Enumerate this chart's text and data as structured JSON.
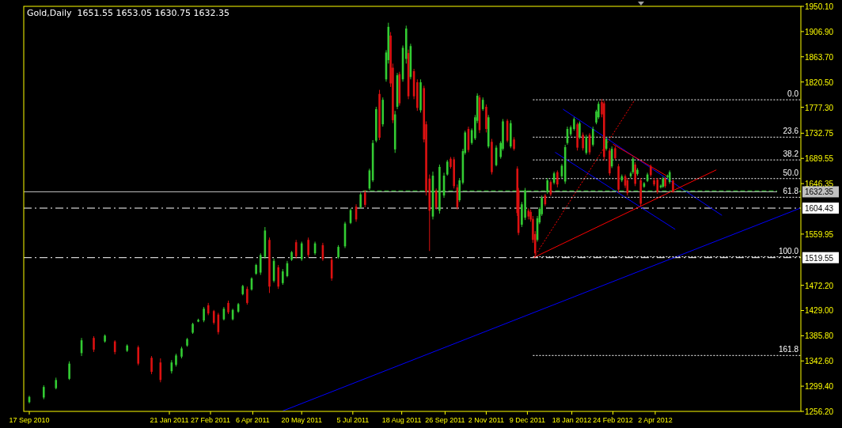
{
  "chart_data": {
    "type": "candlestick",
    "title": "Gold,Daily  1651.55 1653.05 1630.75 1632.35",
    "xlim": [
      "2010-09-12",
      "2012-08-11"
    ],
    "xticks": [
      {
        "value": "2010-09-17",
        "label": "17 Sep 2010"
      },
      {
        "value": "2011-01-21",
        "label": "21 Jan 2011"
      },
      {
        "value": "2011-02-27",
        "label": "27 Feb 2011"
      },
      {
        "value": "2011-04-06",
        "label": "6 Apr 2011"
      },
      {
        "value": "2011-05-20",
        "label": "20 May 2011"
      },
      {
        "value": "2011-07-05",
        "label": "5 Jul 2011"
      },
      {
        "value": "2011-08-18",
        "label": "18 Aug 2011"
      },
      {
        "value": "2011-09-26",
        "label": "26 Sep 2011"
      },
      {
        "value": "2011-11-02",
        "label": "2 Nov 2011"
      },
      {
        "value": "2011-12-09",
        "label": "9 Dec 2011"
      },
      {
        "value": "2012-01-18",
        "label": "18 Jan 2012"
      },
      {
        "value": "2012-02-24",
        "label": "24 Feb 2012"
      },
      {
        "value": "2012-04-02",
        "label": "2 Apr 2012"
      }
    ],
    "ylim": [
      1256.2,
      1950.1
    ],
    "yticks": [
      {
        "value": 1950.1,
        "label": "1950.10"
      },
      {
        "value": 1906.9,
        "label": "1906.90"
      },
      {
        "value": 1863.7,
        "label": "1863.70"
      },
      {
        "value": 1820.5,
        "label": "1820.50"
      },
      {
        "value": 1777.3,
        "label": "1777.30"
      },
      1732.75,
      1689.55,
      1646.35,
      1559.95,
      {
        "value": 1472.2,
        "label": "1472.20"
      },
      {
        "value": 1429,
        "label": "1429.00"
      },
      {
        "value": 1385.8,
        "label": "1385.80"
      },
      {
        "value": 1342.6,
        "label": "1342.60"
      },
      {
        "value": 1299.4,
        "label": "1299.40"
      },
      {
        "value": 1256.2,
        "label": "1256.20"
      }
    ],
    "x": [
      "2010-09-17",
      "2010-09-30",
      "2010-10-11",
      "2010-10-23",
      "2010-11-03",
      "2010-11-14",
      "2010-11-24",
      "2010-12-03",
      "2010-12-14",
      "2010-12-24",
      "2011-01-05",
      "2011-01-13",
      "2011-01-23",
      "2011-01-27",
      "2011-02-01",
      "2011-02-06",
      "2011-02-11",
      "2011-02-16",
      "2011-02-21",
      "2011-02-25",
      "2011-03-02",
      "2011-03-06",
      "2011-03-11",
      "2011-03-15",
      "2011-03-19",
      "2011-03-24",
      "2011-03-28",
      "2011-04-01",
      "2011-04-05",
      "2011-04-09",
      "2011-04-13",
      "2011-04-17",
      "2011-04-21",
      "2011-04-25",
      "2011-04-29",
      "2011-05-03",
      "2011-05-07",
      "2011-05-11",
      "2011-05-15",
      "2011-05-20",
      "2011-05-26",
      "2011-06-01",
      "2011-06-08",
      "2011-06-16",
      "2011-06-22",
      "2011-06-28",
      "2011-07-03",
      "2011-07-08",
      "2011-07-12",
      "2011-07-16",
      "2011-07-20",
      "2011-07-23",
      "2011-07-26",
      "2011-07-29",
      "2011-08-01",
      "2011-08-04",
      "2011-08-06",
      "2011-08-08",
      "2011-08-10",
      "2011-08-12",
      "2011-08-14",
      "2011-08-16",
      "2011-08-19",
      "2011-08-22",
      "2011-08-24",
      "2011-08-26",
      "2011-08-29",
      "2011-09-01",
      "2011-09-04",
      "2011-09-07",
      "2011-09-09",
      "2011-09-12",
      "2011-09-15",
      "2011-09-18",
      "2011-09-21",
      "2011-09-25",
      "2011-09-28",
      "2011-10-01",
      "2011-10-04",
      "2011-10-07",
      "2011-10-09",
      "2011-10-12",
      "2011-10-14",
      "2011-10-17",
      "2011-10-20",
      "2011-10-23",
      "2011-10-25",
      "2011-10-27",
      "2011-10-30",
      "2011-11-02",
      "2011-11-04",
      "2011-11-07",
      "2011-11-11",
      "2011-11-15",
      "2011-11-17",
      "2011-11-21",
      "2011-11-24",
      "2011-11-27",
      "2011-11-30",
      "2011-12-01",
      "2011-12-04",
      "2011-12-07",
      "2011-12-10",
      "2011-12-12",
      "2011-12-14",
      "2011-12-16",
      "2011-12-18",
      "2011-12-20",
      "2011-12-22",
      "2011-12-25",
      "2011-12-27",
      "2011-12-30",
      "2012-01-02",
      "2012-01-05",
      "2012-01-09",
      "2012-01-12",
      "2012-01-14",
      "2012-01-17",
      "2012-01-20",
      "2012-01-23",
      "2012-01-25",
      "2012-01-28",
      "2012-01-31",
      "2012-02-03",
      "2012-02-06",
      "2012-02-09",
      "2012-02-11",
      "2012-02-14",
      "2012-02-16",
      "2012-02-18",
      "2012-02-21",
      "2012-02-23",
      "2012-02-26",
      "2012-02-29",
      "2012-03-03",
      "2012-03-06",
      "2012-03-08",
      "2012-03-11",
      "2012-03-13",
      "2012-03-15",
      "2012-03-17",
      "2012-03-20",
      "2012-03-23",
      "2012-03-26",
      "2012-03-29",
      "2012-04-01",
      "2012-04-04",
      "2012-04-07",
      "2012-04-09",
      "2012-04-11",
      "2012-04-13",
      "2012-04-15",
      "2012-04-18"
    ],
    "ohlc": [
      [
        1272,
        1283,
        1270,
        1281
      ],
      [
        1280,
        1301,
        1277,
        1298
      ],
      [
        1296,
        1314,
        1294,
        1310
      ],
      [
        1312,
        1342,
        1310,
        1338
      ],
      [
        1356,
        1382,
        1351,
        1378
      ],
      [
        1382,
        1385,
        1358,
        1362
      ],
      [
        1376,
        1388,
        1374,
        1386
      ],
      [
        1376,
        1378,
        1354,
        1358
      ],
      [
        1360,
        1371,
        1358,
        1369
      ],
      [
        1366,
        1369,
        1335,
        1338
      ],
      [
        1348,
        1351,
        1320,
        1324
      ],
      [
        1340,
        1347,
        1306,
        1310
      ],
      [
        1325,
        1344,
        1321,
        1340
      ],
      [
        1336,
        1355,
        1333,
        1352
      ],
      [
        1350,
        1367,
        1347,
        1364
      ],
      [
        1369,
        1382,
        1367,
        1380
      ],
      [
        1391,
        1408,
        1389,
        1406
      ],
      [
        1410,
        1415,
        1409,
        1413
      ],
      [
        1412,
        1435,
        1409,
        1432
      ],
      [
        1438,
        1442,
        1421,
        1424
      ],
      [
        1428,
        1430,
        1405,
        1408
      ],
      [
        1422,
        1425,
        1388,
        1392
      ],
      [
        1414,
        1435,
        1412,
        1432
      ],
      [
        1442,
        1446,
        1423,
        1426
      ],
      [
        1414,
        1432,
        1412,
        1430
      ],
      [
        1427,
        1442,
        1425,
        1440
      ],
      [
        1457,
        1473,
        1455,
        1471
      ],
      [
        1466,
        1470,
        1439,
        1442
      ],
      [
        1465,
        1486,
        1463,
        1484
      ],
      [
        1492,
        1509,
        1490,
        1507
      ],
      [
        1494,
        1527,
        1490,
        1524
      ],
      [
        1521,
        1572,
        1518,
        1566
      ],
      [
        1550,
        1554,
        1459,
        1470
      ],
      [
        1480,
        1518,
        1477,
        1514
      ],
      [
        1503,
        1507,
        1466,
        1470
      ],
      [
        1476,
        1500,
        1473,
        1496
      ],
      [
        1488,
        1514,
        1486,
        1510
      ],
      [
        1516,
        1531,
        1514,
        1529
      ],
      [
        1546,
        1550,
        1518,
        1522
      ],
      [
        1517,
        1547,
        1514,
        1544
      ],
      [
        1550,
        1554,
        1520,
        1524
      ],
      [
        1527,
        1547,
        1524,
        1544
      ],
      [
        1541,
        1545,
        1514,
        1517
      ],
      [
        1516,
        1520,
        1480,
        1484
      ],
      [
        1520,
        1541,
        1518,
        1538
      ],
      [
        1539,
        1581,
        1536,
        1578
      ],
      [
        1579,
        1604,
        1577,
        1601
      ],
      [
        1607,
        1611,
        1581,
        1585
      ],
      [
        1606,
        1631,
        1604,
        1628
      ],
      [
        1631,
        1635,
        1606,
        1610
      ],
      [
        1638,
        1672,
        1635,
        1669
      ],
      [
        1652,
        1721,
        1649,
        1716
      ],
      [
        1720,
        1778,
        1717,
        1774
      ],
      [
        1800,
        1807,
        1721,
        1725
      ],
      [
        1748,
        1794,
        1744,
        1790
      ],
      [
        1825,
        1875,
        1821,
        1871
      ],
      [
        1858,
        1922,
        1852,
        1915
      ],
      [
        1900,
        1906,
        1812,
        1818
      ],
      [
        1845,
        1852,
        1750,
        1755
      ],
      [
        1705,
        1771,
        1699,
        1765
      ],
      [
        1778,
        1836,
        1774,
        1832
      ],
      [
        1834,
        1838,
        1780,
        1784
      ],
      [
        1825,
        1883,
        1821,
        1879
      ],
      [
        1860,
        1917,
        1852,
        1912
      ],
      [
        1870,
        1876,
        1791,
        1796
      ],
      [
        1829,
        1886,
        1825,
        1882
      ],
      [
        1839,
        1843,
        1791,
        1796
      ],
      [
        1820,
        1825,
        1771,
        1776
      ],
      [
        1772,
        1825,
        1768,
        1820
      ],
      [
        1810,
        1814,
        1717,
        1722
      ],
      [
        1748,
        1753,
        1626,
        1632
      ],
      [
        1655,
        1662,
        1531,
        1600
      ],
      [
        1590,
        1667,
        1585,
        1660
      ],
      [
        1634,
        1638,
        1602,
        1606
      ],
      [
        1600,
        1679,
        1595,
        1675
      ],
      [
        1626,
        1665,
        1622,
        1660
      ],
      [
        1662,
        1687,
        1660,
        1684
      ],
      [
        1689,
        1692,
        1672,
        1675
      ],
      [
        1688,
        1692,
        1638,
        1642
      ],
      [
        1640,
        1645,
        1602,
        1606
      ],
      [
        1618,
        1656,
        1615,
        1652
      ],
      [
        1648,
        1706,
        1645,
        1702
      ],
      [
        1699,
        1737,
        1696,
        1734
      ],
      [
        1740,
        1744,
        1700,
        1704
      ],
      [
        1716,
        1741,
        1713,
        1738
      ],
      [
        1724,
        1764,
        1721,
        1760
      ],
      [
        1754,
        1801,
        1750,
        1797
      ],
      [
        1794,
        1798,
        1733,
        1738
      ],
      [
        1774,
        1794,
        1771,
        1790
      ],
      [
        1778,
        1782,
        1734,
        1740
      ],
      [
        1710,
        1764,
        1707,
        1760
      ],
      [
        1718,
        1723,
        1662,
        1666
      ],
      [
        1678,
        1712,
        1676,
        1708
      ],
      [
        1692,
        1719,
        1689,
        1716
      ],
      [
        1706,
        1757,
        1703,
        1753
      ],
      [
        1754,
        1757,
        1717,
        1720
      ],
      [
        1710,
        1755,
        1707,
        1750
      ],
      [
        1722,
        1726,
        1703,
        1706
      ],
      [
        1672,
        1676,
        1591,
        1596
      ],
      [
        1635,
        1639,
        1558,
        1562
      ],
      [
        1576,
        1615,
        1572,
        1611
      ],
      [
        1588,
        1639,
        1584,
        1635
      ],
      [
        1600,
        1604,
        1585,
        1590
      ],
      [
        1598,
        1602,
        1581,
        1585
      ],
      [
        1586,
        1591,
        1545,
        1550
      ],
      [
        1560,
        1565,
        1520,
        1527
      ],
      [
        1550,
        1591,
        1547,
        1587
      ],
      [
        1580,
        1606,
        1577,
        1603
      ],
      [
        1594,
        1626,
        1591,
        1622
      ],
      [
        1626,
        1629,
        1608,
        1611
      ],
      [
        1632,
        1656,
        1629,
        1652
      ],
      [
        1649,
        1652,
        1625,
        1628
      ],
      [
        1648,
        1667,
        1645,
        1664
      ],
      [
        1666,
        1669,
        1640,
        1645
      ],
      [
        1659,
        1680,
        1656,
        1677
      ],
      [
        1650,
        1713,
        1646,
        1709
      ],
      [
        1716,
        1744,
        1713,
        1740
      ],
      [
        1731,
        1746,
        1728,
        1743
      ],
      [
        1740,
        1760,
        1737,
        1757
      ],
      [
        1748,
        1751,
        1703,
        1708
      ],
      [
        1726,
        1753,
        1723,
        1750
      ],
      [
        1730,
        1734,
        1703,
        1707
      ],
      [
        1699,
        1730,
        1696,
        1726
      ],
      [
        1730,
        1733,
        1696,
        1700
      ],
      [
        1713,
        1744,
        1710,
        1740
      ],
      [
        1751,
        1773,
        1748,
        1770
      ],
      [
        1760,
        1787,
        1757,
        1783
      ],
      [
        1786,
        1791,
        1760,
        1765
      ],
      [
        1784,
        1788,
        1686,
        1692
      ],
      [
        1706,
        1726,
        1703,
        1723
      ],
      [
        1703,
        1707,
        1660,
        1664
      ],
      [
        1676,
        1710,
        1673,
        1706
      ],
      [
        1707,
        1710,
        1687,
        1690
      ],
      [
        1676,
        1680,
        1631,
        1636
      ],
      [
        1652,
        1662,
        1649,
        1659
      ],
      [
        1659,
        1662,
        1639,
        1643
      ],
      [
        1652,
        1656,
        1626,
        1630
      ],
      [
        1659,
        1667,
        1656,
        1664
      ],
      [
        1666,
        1692,
        1663,
        1689
      ],
      [
        1679,
        1683,
        1642,
        1646
      ],
      [
        1663,
        1673,
        1660,
        1670
      ],
      [
        1652,
        1656,
        1608,
        1612
      ],
      [
        1641,
        1649,
        1639,
        1647
      ],
      [
        1651,
        1665,
        1649,
        1662
      ],
      [
        1676,
        1679,
        1658,
        1661
      ],
      [
        1652,
        1656,
        1642,
        1645
      ],
      [
        1653,
        1656,
        1629,
        1632
      ],
      [
        1640,
        1645,
        1638,
        1643
      ],
      [
        1641,
        1658,
        1639,
        1655
      ],
      [
        1655,
        1658,
        1639,
        1642
      ],
      [
        1658,
        1662,
        1656,
        1660
      ],
      [
        1649,
        1669,
        1646,
        1666
      ],
      [
        1651.55,
        1653.05,
        1630.75,
        1632.35
      ]
    ],
    "colors": [
      "#33cc33",
      "#33cc33",
      "#33cc33",
      "#33cc33",
      "#33cc33",
      "#dd1111",
      "#33cc33",
      "#dd1111",
      "#33cc33",
      "#dd1111",
      "#dd1111",
      "#dd1111",
      "#33cc33",
      "#33cc33",
      "#33cc33",
      "#33cc33",
      "#33cc33",
      "#33cc33",
      "#33cc33",
      "#dd1111",
      "#dd1111",
      "#dd1111",
      "#33cc33",
      "#dd1111",
      "#33cc33",
      "#33cc33",
      "#33cc33",
      "#dd1111",
      "#33cc33",
      "#33cc33",
      "#33cc33",
      "#33cc33",
      "#dd1111",
      "#33cc33",
      "#dd1111",
      "#33cc33",
      "#33cc33",
      "#33cc33",
      "#dd1111",
      "#33cc33",
      "#dd1111",
      "#33cc33",
      "#dd1111",
      "#dd1111",
      "#33cc33",
      "#33cc33",
      "#33cc33",
      "#dd1111",
      "#33cc33",
      "#dd1111",
      "#33cc33",
      "#33cc33",
      "#33cc33",
      "#dd1111",
      "#33cc33",
      "#33cc33",
      "#33cc33",
      "#dd1111",
      "#dd1111",
      "#33cc33",
      "#33cc33",
      "#dd1111",
      "#33cc33",
      "#33cc33",
      "#dd1111",
      "#33cc33",
      "#dd1111",
      "#dd1111",
      "#33cc33",
      "#dd1111",
      "#dd1111",
      "#dd1111",
      "#33cc33",
      "#dd1111",
      "#33cc33",
      "#33cc33",
      "#33cc33",
      "#dd1111",
      "#dd1111",
      "#dd1111",
      "#33cc33",
      "#33cc33",
      "#33cc33",
      "#dd1111",
      "#33cc33",
      "#33cc33",
      "#33cc33",
      "#dd1111",
      "#33cc33",
      "#dd1111",
      "#33cc33",
      "#dd1111",
      "#33cc33",
      "#33cc33",
      "#33cc33",
      "#dd1111",
      "#33cc33",
      "#dd1111",
      "#dd1111",
      "#dd1111",
      "#33cc33",
      "#33cc33",
      "#dd1111",
      "#dd1111",
      "#dd1111",
      "#dd1111",
      "#33cc33",
      "#33cc33",
      "#33cc33",
      "#dd1111",
      "#33cc33",
      "#dd1111",
      "#33cc33",
      "#dd1111",
      "#33cc33",
      "#33cc33",
      "#33cc33",
      "#33cc33",
      "#33cc33",
      "#dd1111",
      "#33cc33",
      "#dd1111",
      "#33cc33",
      "#dd1111",
      "#33cc33",
      "#33cc33",
      "#33cc33",
      "#dd1111",
      "#dd1111",
      "#33cc33",
      "#dd1111",
      "#33cc33",
      "#dd1111",
      "#dd1111",
      "#33cc33",
      "#dd1111",
      "#dd1111",
      "#33cc33",
      "#33cc33",
      "#dd1111",
      "#33cc33",
      "#dd1111",
      "#33cc33",
      "#33cc33",
      "#dd1111",
      "#dd1111",
      "#dd1111",
      "#33cc33",
      "#33cc33",
      "#dd1111",
      "#33cc33",
      "#33cc33",
      "#dd1111"
    ],
    "series": [
      {
        "type": "line",
        "x": [
          "2011-05-03",
          "2012-08-10"
        ],
        "values": [
          1257,
          1604
        ],
        "color": "#0000ff",
        "line_style": "solid"
      },
      {
        "type": "line",
        "x": [
          "2012-01-10",
          "2012-06-01"
        ],
        "values": [
          1774,
          1592
        ],
        "color": "#0000ff",
        "line_style": "solid"
      },
      {
        "type": "line",
        "x": [
          "2012-01-03",
          "2012-04-20"
        ],
        "values": [
          1700,
          1568
        ],
        "color": "#0000ff",
        "line_style": "solid"
      },
      {
        "type": "line",
        "x": [
          "2012-02-24",
          "2012-04-12"
        ],
        "values": [
          1714,
          1660
        ],
        "color": "#ff0000",
        "line_style": "solid"
      },
      {
        "type": "line",
        "x": [
          "2011-12-15",
          "2012-05-27"
        ],
        "values": [
          1520,
          1670
        ],
        "color": "#ff0000",
        "line_style": "solid"
      },
      {
        "type": "line",
        "x": [
          "2011-12-15",
          "2012-03-14"
        ],
        "values": [
          1520,
          1788
        ],
        "color": "#ff0000",
        "line_style": "dotted"
      },
      {
        "type": "line",
        "x": [
          "2011-07-14",
          "2012-08-11"
        ],
        "values": [
          1634,
          1634
        ],
        "color": "#33cc33",
        "line_style": "dashed"
      },
      {
        "type": "line",
        "name": "0.0",
        "x": [
          "2011-12-14",
          "2012-08-11"
        ],
        "values": [
          1790,
          1790
        ],
        "color": "#ffffff",
        "line_style": "dotted"
      },
      {
        "type": "line",
        "name": "23.6",
        "x": [
          "2011-12-14",
          "2012-08-11"
        ],
        "values": [
          1726,
          1726
        ],
        "color": "#ffffff",
        "line_style": "dotted"
      },
      {
        "type": "line",
        "name": "38.2",
        "x": [
          "2011-12-14",
          "2012-08-11"
        ],
        "values": [
          1687,
          1687
        ],
        "color": "#ffffff",
        "line_style": "dotted"
      },
      {
        "type": "line",
        "name": "50.0",
        "x": [
          "2011-12-14",
          "2012-08-11"
        ],
        "values": [
          1655,
          1655
        ],
        "color": "#ffffff",
        "line_style": "dotted"
      },
      {
        "type": "line",
        "name": "61.8",
        "x": [
          "2011-12-14",
          "2012-08-11"
        ],
        "values": [
          1623,
          1623
        ],
        "color": "#ffffff",
        "line_style": "dotted"
      },
      {
        "type": "line",
        "name": "100.0",
        "x": [
          "2011-12-14",
          "2012-08-11"
        ],
        "values": [
          1521,
          1521
        ],
        "color": "#ffffff",
        "line_style": "dotted"
      },
      {
        "type": "line",
        "name": "161.8",
        "x": [
          "2011-12-14",
          "2012-08-11"
        ],
        "values": [
          1352,
          1352
        ],
        "color": "#ffffff",
        "line_style": "dotted"
      }
    ],
    "ref_lines": [
      {
        "axis": "y",
        "value": 1632.35,
        "label": "1632.35",
        "color": "#c0c0c0",
        "line_style": "solid"
      },
      {
        "axis": "y",
        "value": 1604.43,
        "label": "1604.43",
        "color": "#ffffff",
        "line_style": "dashdot"
      },
      {
        "axis": "y",
        "value": 1519.55,
        "label": "1519.55",
        "color": "#ffffff",
        "line_style": "dashdot"
      }
    ]
  }
}
